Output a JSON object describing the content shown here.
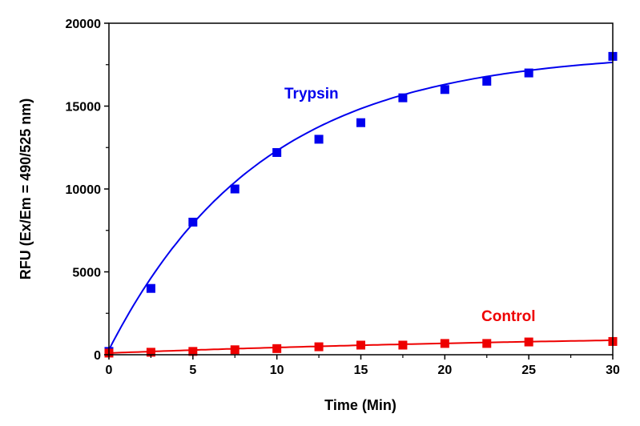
{
  "chart_data": {
    "type": "scatter",
    "title": "",
    "xlabel": "Time (Min)",
    "ylabel": "RFU (Ex/Em = 490/525 nm)",
    "xlim": [
      0,
      30
    ],
    "ylim": [
      0,
      20000
    ],
    "xticks": [
      0,
      5,
      10,
      15,
      20,
      25,
      30
    ],
    "xtick_labels": [
      "0",
      "5",
      "10",
      "15",
      "20",
      "25",
      "30"
    ],
    "yticks": [
      0,
      5000,
      10000,
      15000,
      20000
    ],
    "ytick_labels": [
      "0",
      "5000",
      "10000",
      "15000",
      "20000"
    ],
    "grid": false,
    "series": [
      {
        "name": "Trypsin",
        "color": "#0000ee",
        "x": [
          0,
          2.5,
          5,
          7.5,
          10,
          12.5,
          15,
          17.5,
          20,
          22.5,
          25,
          30
        ],
        "y": [
          200,
          4000,
          8000,
          10000,
          12200,
          13000,
          14000,
          15500,
          16000,
          16500,
          17000,
          18000
        ],
        "fit": {
          "model": "exponential rise",
          "plateau": 18000,
          "rate": 0.11,
          "offset": 300
        }
      },
      {
        "name": "Control",
        "color": "#ee0000",
        "x": [
          0,
          2.5,
          5,
          7.5,
          10,
          12.5,
          15,
          17.5,
          20,
          22.5,
          25,
          30
        ],
        "y": [
          100,
          150,
          200,
          300,
          370,
          480,
          580,
          580,
          680,
          680,
          770,
          800
        ],
        "fit": {
          "model": "exponential rise",
          "plateau": 1300,
          "rate": 0.03,
          "offset": 100
        }
      }
    ],
    "annotations": [
      "Trypsin",
      "Control"
    ]
  }
}
